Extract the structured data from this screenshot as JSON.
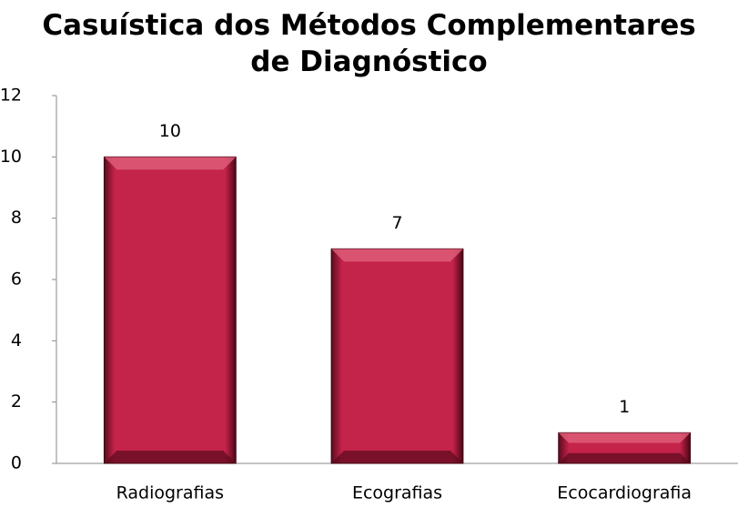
{
  "chart_data": {
    "type": "bar",
    "title": "Casuística dos Métodos Complementares de Diagnóstico",
    "categories": [
      "Radiografias",
      "Ecografias",
      "Ecocardiografia"
    ],
    "values": [
      10,
      7,
      1
    ],
    "color": "#c4234a",
    "ylim": [
      0,
      12
    ],
    "yticks": [
      0,
      2,
      4,
      6,
      8,
      10,
      12
    ],
    "grid": false
  }
}
